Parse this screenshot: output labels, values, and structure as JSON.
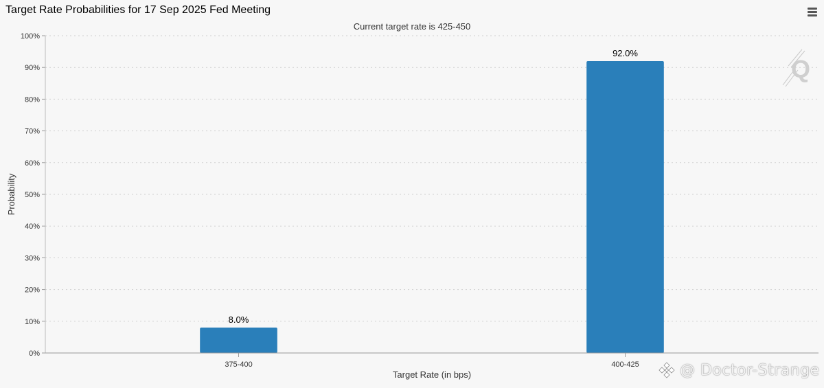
{
  "header": {
    "title": "Target Rate Probabilities for 17 Sep 2025 Fed Meeting",
    "subtitle": "Current target rate is 425-450",
    "menu_icon": "hamburger-menu-icon"
  },
  "chart_data": {
    "type": "bar",
    "title": "Target Rate Probabilities for 17 Sep 2025 Fed Meeting",
    "subtitle": "Current target rate is 425-450",
    "categories": [
      "375-400",
      "400-425"
    ],
    "values": [
      8.0,
      92.0
    ],
    "data_labels": [
      "8.0%",
      "92.0%"
    ],
    "xlabel": "Target Rate (in bps)",
    "ylabel": "Probability",
    "ylim": [
      0,
      100
    ],
    "yticks": [
      0,
      10,
      20,
      30,
      40,
      50,
      60,
      70,
      80,
      90,
      100
    ],
    "ytick_labels": [
      "0%",
      "10%",
      "20%",
      "30%",
      "40%",
      "50%",
      "60%",
      "70%",
      "80%",
      "90%",
      "100%"
    ],
    "grid": true,
    "legend": "none",
    "bar_color": "#2a7fba"
  },
  "watermark": {
    "text": "@ Doctor-Strange",
    "icon": "binance-logo-icon"
  },
  "logo": {
    "icon": "quikstrike-q-logo-icon"
  }
}
